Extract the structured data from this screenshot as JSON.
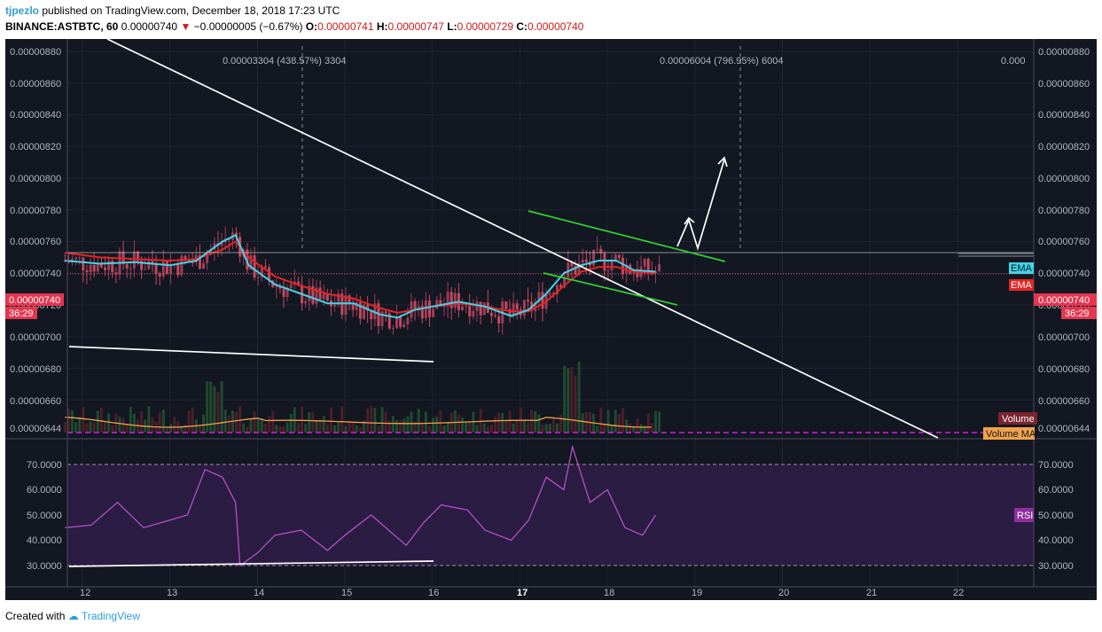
{
  "header": {
    "author": "tjpezlo",
    "published_text": "published on TradingView.com, December 18, 2018 17:23 UTC",
    "symbol": "BINANCE:ASTBTC, 60",
    "last_price": "0.00000740",
    "change_arrow": "▼",
    "change": "−0.00000005 (−0.67%)",
    "open_label": "O:",
    "open": "0.00000741",
    "high_label": "H:",
    "high": "0.00000747",
    "low_label": "L:",
    "low": "0.00000729",
    "close_label": "C:",
    "close": "0.00000740"
  },
  "chart": {
    "measure1": "0.00003304 (438.57%) 3304",
    "measure2": "0.00006004 (796.95%) 6004",
    "measure3": "0.000",
    "price_labels": [
      "0.00000880",
      "0.00000860",
      "0.00000840",
      "0.00000820",
      "0.00000800",
      "0.00000780",
      "0.00000760",
      "0.00000740",
      "0.00000720",
      "0.00000700",
      "0.00000680",
      "0.00000660",
      "0.00000644"
    ],
    "current_price_tag": "0.00000740",
    "countdown": "36:29",
    "ema_label_1": "EMA",
    "ema_label_2": "EMA",
    "volume_label": "Volume",
    "volume_ma_label": "Volume MA",
    "rsi_labels": [
      "70.0000",
      "60.0000",
      "50.0000",
      "40.0000",
      "30.0000"
    ],
    "rsi_tag": "RSI",
    "x_labels": [
      "12",
      "13",
      "14",
      "15",
      "16",
      "17",
      "18",
      "19",
      "20",
      "21",
      "22"
    ],
    "colors": {
      "background": "#131722",
      "ema_fast": "#42d4e8",
      "ema_slow": "#e52424",
      "up_candle": "#9a3f58",
      "down_candle": "#c5485e",
      "rsi_line": "#b44fc4",
      "rsi_band": "#2b1c44",
      "trend_white": "#ffffff",
      "channel_green": "#31d331",
      "volume_ma": "#f0a24a",
      "dashed_magenta": "#d41ee0"
    }
  },
  "chart_data": {
    "type": "line",
    "interval": "60",
    "x_label_values": [
      12,
      13,
      14,
      15,
      16,
      17,
      18,
      19,
      20,
      21,
      22
    ],
    "price_range": [
      6.42e-06,
      8.9e-06
    ],
    "rsi_range": [
      28,
      78
    ],
    "series": [
      {
        "name": "EMA",
        "x": [
          11.8,
          12.2,
          12.6,
          13.0,
          13.3,
          13.6,
          13.75,
          13.9,
          14.2,
          14.5,
          14.8,
          15.1,
          15.4,
          15.6,
          15.8,
          16.0,
          16.3,
          16.6,
          16.9,
          17.1,
          17.3,
          17.5,
          17.7,
          17.9,
          18.1,
          18.3,
          18.55
        ],
        "values": [
          7.48e-06,
          7.46e-06,
          7.47e-06,
          7.45e-06,
          7.48e-06,
          7.6e-06,
          7.64e-06,
          7.45e-06,
          7.33e-06,
          7.27e-06,
          7.21e-06,
          7.21e-06,
          7.14e-06,
          7.12e-06,
          7.17e-06,
          7.19e-06,
          7.22e-06,
          7.19e-06,
          7.13e-06,
          7.17e-06,
          7.27e-06,
          7.4e-06,
          7.45e-06,
          7.48e-06,
          7.48e-06,
          7.42e-06,
          7.41e-06
        ]
      },
      {
        "name": "EMA",
        "x": [
          11.8,
          12.2,
          12.6,
          13.0,
          13.3,
          13.6,
          13.75,
          13.9,
          14.2,
          14.5,
          14.8,
          15.1,
          15.4,
          15.6,
          15.8,
          16.0,
          16.3,
          16.6,
          16.9,
          17.1,
          17.3,
          17.5,
          17.7,
          17.9,
          18.1,
          18.3,
          18.55
        ],
        "values": [
          7.53e-06,
          7.5e-06,
          7.49e-06,
          7.48e-06,
          7.49e-06,
          7.55e-06,
          7.6e-06,
          7.5e-06,
          7.38e-06,
          7.32e-06,
          7.27e-06,
          7.24e-06,
          7.18e-06,
          7.15e-06,
          7.17e-06,
          7.19e-06,
          7.21e-06,
          7.19e-06,
          7.16e-06,
          7.16e-06,
          7.22e-06,
          7.32e-06,
          7.41e-06,
          7.44e-06,
          7.44e-06,
          7.41e-06,
          7.4e-06
        ]
      },
      {
        "name": "RSI",
        "x": [
          11.8,
          12.1,
          12.4,
          12.7,
          13.0,
          13.2,
          13.4,
          13.6,
          13.75,
          13.8,
          14.0,
          14.2,
          14.5,
          14.8,
          15.0,
          15.3,
          15.5,
          15.7,
          15.9,
          16.1,
          16.4,
          16.6,
          16.9,
          17.1,
          17.3,
          17.5,
          17.6,
          17.8,
          18.0,
          18.2,
          18.4,
          18.55
        ],
        "values": [
          45,
          46,
          55,
          45,
          48,
          50,
          68,
          65,
          55,
          30,
          35,
          42,
          44,
          36,
          42,
          50,
          44,
          38,
          47,
          54,
          52,
          44,
          40,
          48,
          65,
          60,
          77,
          55,
          60,
          45,
          42,
          50
        ]
      }
    ]
  }
}
